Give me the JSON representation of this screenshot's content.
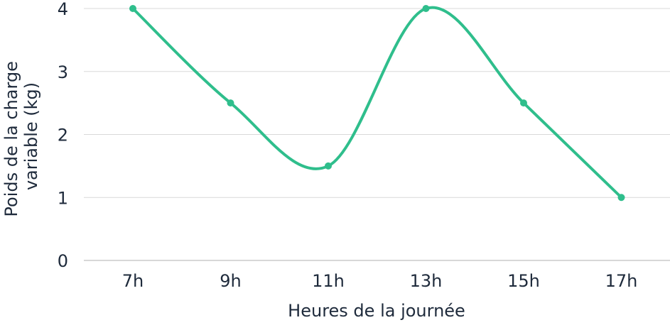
{
  "chart_data": {
    "type": "line",
    "categories": [
      "7h",
      "9h",
      "11h",
      "13h",
      "15h",
      "17h"
    ],
    "series": [
      {
        "values": [
          4,
          2.5,
          1.5,
          4,
          2.5,
          1
        ],
        "color": "#2fbe8c"
      }
    ],
    "xlabel": "Heures de la journée",
    "ylabel_lines": [
      "Poids de la charge",
      "variable (kg)"
    ],
    "ylim": [
      0,
      4
    ],
    "yticks": [
      "0",
      "1",
      "2",
      "3",
      "4"
    ],
    "grid": true,
    "smooth": true
  }
}
